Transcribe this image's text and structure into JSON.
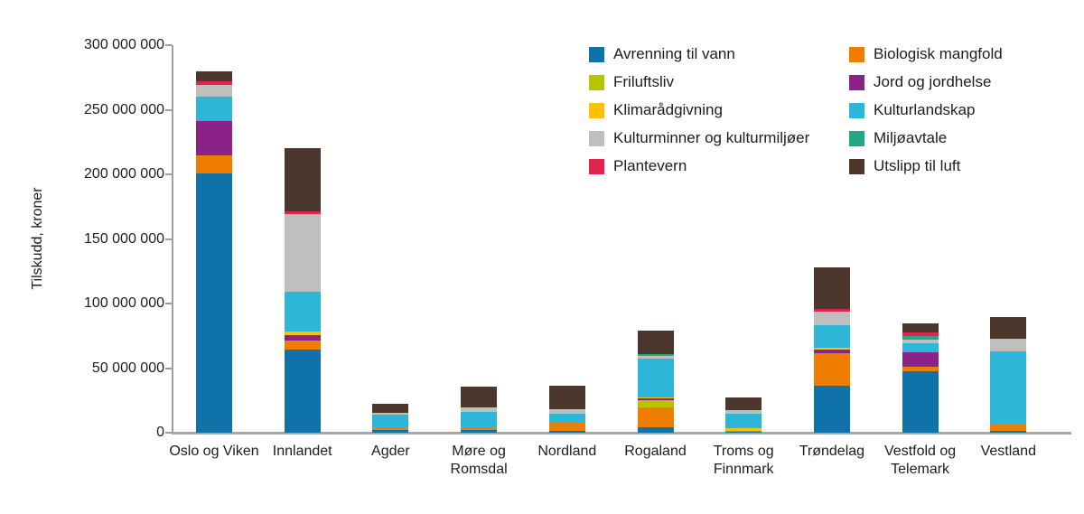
{
  "chart_data": {
    "type": "bar",
    "stacked": true,
    "title": "",
    "xlabel": "",
    "ylabel": "Tilskudd, kroner",
    "ylim": [
      0,
      300000000
    ],
    "ytick_interval": 50000000,
    "yticks": [
      "0",
      "50 000 000",
      "100 000 000",
      "150 000 000",
      "200 000 000",
      "250 000 000",
      "300 000 000"
    ],
    "grid": false,
    "legend_position": "top-right-two-columns",
    "categories": [
      "Oslo og Viken",
      "Innlandet",
      "Agder",
      "Møre og Romsdal",
      "Nordland",
      "Rogaland",
      "Troms og Finnmark",
      "Trøndelag",
      "Vestfold og Telemark",
      "Vestland"
    ],
    "series": [
      {
        "name": "Avrenning til vann",
        "color": "#0f72a9",
        "values": [
          201000000,
          64000000,
          2300000,
          2300000,
          1200000,
          4400000,
          500000,
          36600000,
          47300000,
          1600000
        ]
      },
      {
        "name": "Biologisk mangfold",
        "color": "#ee7d00",
        "values": [
          13500000,
          7000000,
          2100000,
          1700000,
          6700000,
          15400000,
          1000000,
          25200000,
          3900000,
          5200000
        ]
      },
      {
        "name": "Friluftsliv",
        "color": "#b9c400",
        "values": [
          0,
          0,
          0,
          0,
          0,
          5600000,
          0,
          0,
          0,
          0
        ]
      },
      {
        "name": "Jord og jordhelse",
        "color": "#8b2288",
        "values": [
          27000000,
          4400000,
          0,
          0,
          0,
          1000000,
          0,
          2400000,
          11000000,
          0
        ]
      },
      {
        "name": "Klimarådgivning",
        "color": "#fcc200",
        "values": [
          0,
          2600000,
          0,
          0,
          0,
          1000000,
          2000000,
          1600000,
          0,
          0
        ]
      },
      {
        "name": "Kulturlandskap",
        "color": "#2eb6d9",
        "values": [
          19000000,
          31000000,
          9300000,
          12100000,
          7000000,
          29800000,
          11200000,
          17500000,
          6800000,
          55900000
        ]
      },
      {
        "name": "Kulturminner og kulturmiljøer",
        "color": "#bfbfbf",
        "values": [
          8600000,
          60000000,
          1500000,
          3500000,
          3500000,
          2100000,
          2800000,
          10500000,
          2800000,
          10000000
        ]
      },
      {
        "name": "Miljøavtale",
        "color": "#23a885",
        "values": [
          0,
          0,
          0,
          0,
          0,
          1800000,
          0,
          0,
          2800000,
          0
        ]
      },
      {
        "name": "Plantevern",
        "color": "#e2234e",
        "values": [
          2800000,
          2500000,
          0,
          0,
          0,
          0,
          0,
          2300000,
          2800000,
          0
        ]
      },
      {
        "name": "Utslipp til luft",
        "color": "#4b372b",
        "values": [
          7700000,
          49000000,
          7500000,
          16300000,
          18200000,
          18000000,
          10000000,
          32000000,
          7000000,
          16800000
        ]
      }
    ]
  }
}
